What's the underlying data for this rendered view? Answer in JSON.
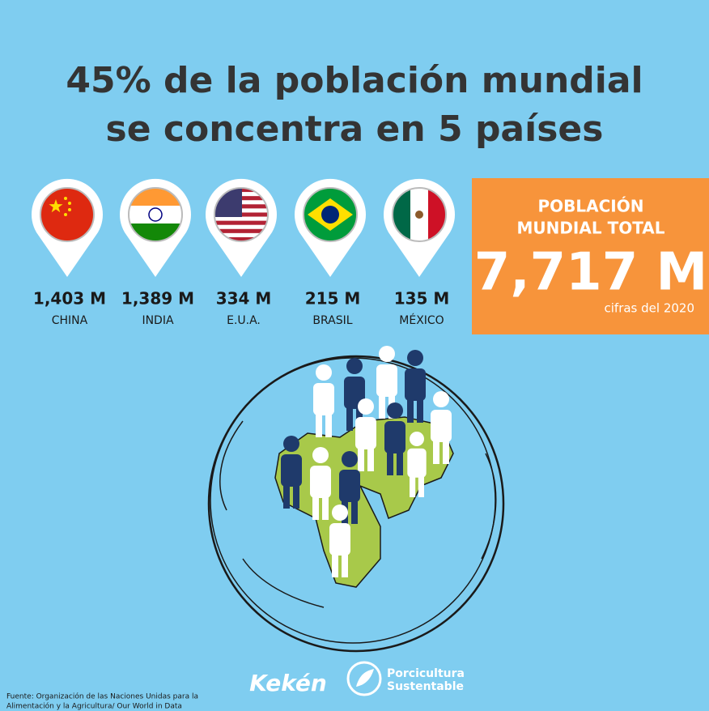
{
  "title": [
    "45% de la población mundial",
    "se concentra en 5 países"
  ],
  "countries": [
    {
      "value": "1,403 M",
      "name": "CHINA"
    },
    {
      "value": "1,389 M",
      "name": "INDIA"
    },
    {
      "value": "334 M",
      "name": "E.U.A."
    },
    {
      "value": "215 M",
      "name": "BRASIL"
    },
    {
      "value": "135 M",
      "name": "MÉXICO"
    }
  ],
  "total": {
    "heading": [
      "POBLACIÓN",
      "MUNDIAL TOTAL"
    ],
    "value": "7,717 M",
    "note": "cifras del 2020"
  },
  "footer": {
    "source": [
      "Fuente: Organización de las Naciones Unidas para la",
      "Alimentación y la Agricultura/ Our World in Data"
    ],
    "brand": "Kekén",
    "partner": [
      "Porcicultura",
      "Sustentable"
    ]
  }
}
